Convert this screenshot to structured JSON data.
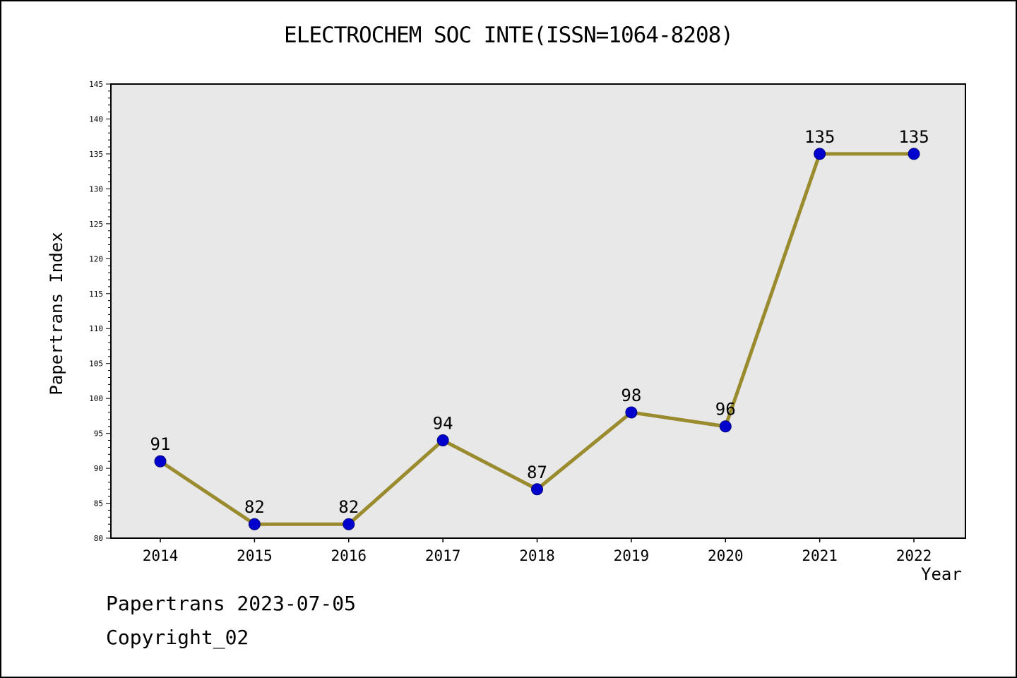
{
  "chart_data": {
    "type": "line",
    "title": "ELECTROCHEM SOC INTE(ISSN=1064-8208)",
    "x": [
      2014,
      2015,
      2016,
      2017,
      2018,
      2019,
      2020,
      2021,
      2022
    ],
    "values": [
      91,
      82,
      82,
      94,
      87,
      98,
      96,
      135,
      135
    ],
    "xlabel": "Year",
    "ylabel": "Papertrans Index",
    "ylim": [
      80,
      145
    ],
    "y_major_step": 5,
    "y_minor_step": 1,
    "grid": false,
    "legend": "none",
    "line_color": "#9a8b2f",
    "marker_color": "#0000cd",
    "marker_edge_color": "#000080",
    "plot_bg": "#e8e8e8",
    "frame_color": "#000000"
  },
  "footer": {
    "line1": "Papertrans 2023-07-05",
    "line2": "Copyright_02"
  }
}
